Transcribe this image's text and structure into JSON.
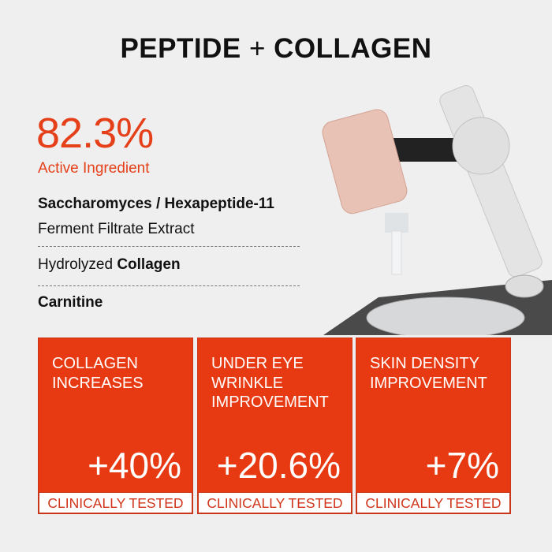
{
  "title": {
    "left": "PEPTIDE",
    "plus": "+",
    "right": "COLLAGEN"
  },
  "headline": {
    "percent": "82.3%",
    "label": "Active Ingredient"
  },
  "ingredients": [
    {
      "line1": "Saccharomyces / Hexapeptide-11",
      "line2": "Ferment Filtrate Extract"
    },
    {
      "prefix": "Hydrolyzed",
      "bold": "Collagen"
    },
    {
      "bold": "Carnitine"
    }
  ],
  "cards": [
    {
      "label": "COLLAGEN INCREASES",
      "value": "+40%",
      "footer": "CLINICALLY TESTED"
    },
    {
      "label": "UNDER EYE WRINKLE IMPROVEMENT",
      "value": "+20.6%",
      "footer": "CLINICALLY TESTED"
    },
    {
      "label": "SKIN DENSITY IMPROVEMENT",
      "value": "+7%",
      "footer": "CLINICALLY TESTED"
    }
  ],
  "colors": {
    "accent": "#e83a12",
    "background": "#efefef"
  }
}
